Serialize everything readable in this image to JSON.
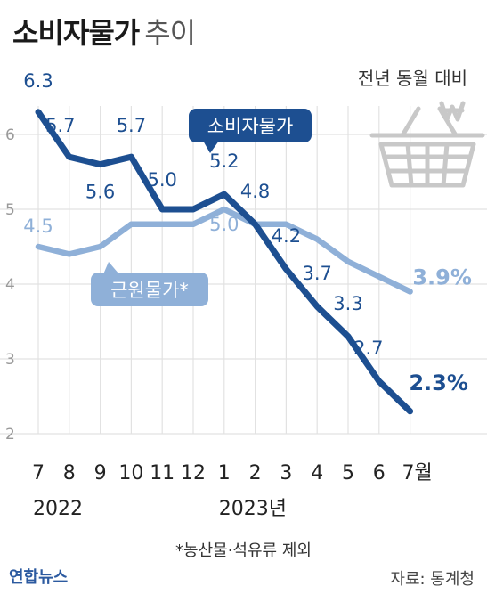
{
  "header": {
    "title_main": "소비자물가",
    "title_sub": "추이",
    "unit": "전년 동월 대비"
  },
  "chart_data": {
    "type": "line",
    "x": [
      "7",
      "8",
      "9",
      "10",
      "11",
      "12",
      "1",
      "2",
      "3",
      "4",
      "5",
      "6",
      "7"
    ],
    "x_unit_suffix": "월",
    "year_labels": [
      {
        "index": 0,
        "text": "2022"
      },
      {
        "index": 6,
        "text": "2023년"
      }
    ],
    "ylim": [
      2,
      6.5
    ],
    "yticks": [
      2,
      3,
      4,
      5,
      6
    ],
    "grid": true,
    "series": [
      {
        "name": "소비자물가",
        "color": "#1d4f91",
        "values": [
          6.3,
          5.7,
          5.6,
          5.7,
          5.0,
          5.0,
          5.2,
          4.8,
          4.2,
          3.7,
          3.3,
          2.7,
          2.3
        ],
        "labels": [
          "6.3",
          "5.7",
          "5.6",
          "5.7",
          "5.0",
          "",
          "5.2",
          "4.8",
          "4.2",
          "3.7",
          "3.3",
          "2.7",
          "2.3%"
        ]
      },
      {
        "name": "근원물가*",
        "color": "#8fb0d8",
        "values": [
          4.5,
          4.4,
          4.5,
          4.8,
          4.8,
          4.8,
          5.0,
          4.8,
          4.8,
          4.6,
          4.3,
          4.1,
          3.9
        ],
        "labels": [
          "4.5",
          "",
          "",
          "",
          "",
          "",
          "5.0",
          "",
          "",
          "",
          "",
          "",
          "3.9%"
        ]
      }
    ]
  },
  "footnote": "*농산물·석유류 제외",
  "logo": "연합뉴스",
  "source": "자료: 통계청",
  "icon": "shopping-basket-won-icon"
}
